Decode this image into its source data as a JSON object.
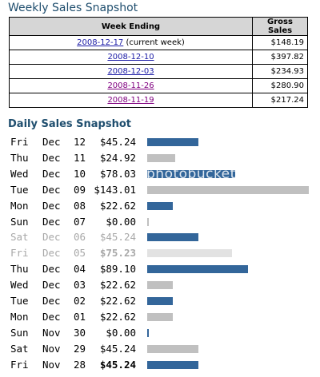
{
  "weekly": {
    "title": "Weekly Sales Snapshot",
    "headers": {
      "week": "Week Ending",
      "gross": "Gross Sales"
    },
    "rows": [
      {
        "date": "2008-12-17",
        "note": " (current week)",
        "gross": "$148.19",
        "visited": false
      },
      {
        "date": "2008-12-10",
        "note": "",
        "gross": "$397.82",
        "visited": false
      },
      {
        "date": "2008-12-03",
        "note": "",
        "gross": "$234.93",
        "visited": false
      },
      {
        "date": "2008-11-26",
        "note": "",
        "gross": "$280.90",
        "visited": true
      },
      {
        "date": "2008-11-19",
        "note": "",
        "gross": "$217.24",
        "visited": true
      }
    ]
  },
  "daily": {
    "title": "Daily Sales Snapshot",
    "colors": {
      "bar_blue": "#33669a",
      "bar_gray": "#c0c0c0",
      "title": "#1f4e6e"
    },
    "watermark": "photobucket",
    "rows": [
      {
        "dow": "Fri",
        "month": "Dec",
        "day": "12",
        "amount": "$45.24",
        "value": 45.24,
        "color": "blue",
        "style": ""
      },
      {
        "dow": "Thu",
        "month": "Dec",
        "day": "11",
        "amount": "$24.92",
        "value": 24.92,
        "color": "gray",
        "style": ""
      },
      {
        "dow": "Wed",
        "month": "Dec",
        "day": "10",
        "amount": "$78.03",
        "value": 78.03,
        "color": "blue",
        "style": ""
      },
      {
        "dow": "Tue",
        "month": "Dec",
        "day": "09",
        "amount": "$143.01",
        "value": 143.01,
        "color": "gray",
        "style": ""
      },
      {
        "dow": "Mon",
        "month": "Dec",
        "day": "08",
        "amount": "$22.62",
        "value": 22.62,
        "color": "blue",
        "style": ""
      },
      {
        "dow": "Sun",
        "month": "Dec",
        "day": "07",
        "amount": "$0.00",
        "value": 0,
        "color": "gray",
        "style": ""
      },
      {
        "dow": "Sat",
        "month": "Dec",
        "day": "06",
        "amount": "$45.24",
        "value": 45.24,
        "color": "blue",
        "style": "faded"
      },
      {
        "dow": "Fri",
        "month": "Dec",
        "day": "05",
        "amount": "$75.23",
        "value": 75.23,
        "color": "gray",
        "style": "faded bold"
      },
      {
        "dow": "Thu",
        "month": "Dec",
        "day": "04",
        "amount": "$89.10",
        "value": 89.1,
        "color": "blue",
        "style": ""
      },
      {
        "dow": "Wed",
        "month": "Dec",
        "day": "03",
        "amount": "$22.62",
        "value": 22.62,
        "color": "gray",
        "style": ""
      },
      {
        "dow": "Tue",
        "month": "Dec",
        "day": "02",
        "amount": "$22.62",
        "value": 22.62,
        "color": "blue",
        "style": ""
      },
      {
        "dow": "Mon",
        "month": "Dec",
        "day": "01",
        "amount": "$22.62",
        "value": 22.62,
        "color": "gray",
        "style": ""
      },
      {
        "dow": "Sun",
        "month": "Nov",
        "day": "30",
        "amount": "$0.00",
        "value": 0,
        "color": "blue",
        "style": ""
      },
      {
        "dow": "Sat",
        "month": "Nov",
        "day": "29",
        "amount": "$45.24",
        "value": 45.24,
        "color": "gray",
        "style": ""
      },
      {
        "dow": "Fri",
        "month": "Nov",
        "day": "28",
        "amount": "$45.24",
        "value": 45.24,
        "color": "blue",
        "style": "bold"
      }
    ]
  }
}
